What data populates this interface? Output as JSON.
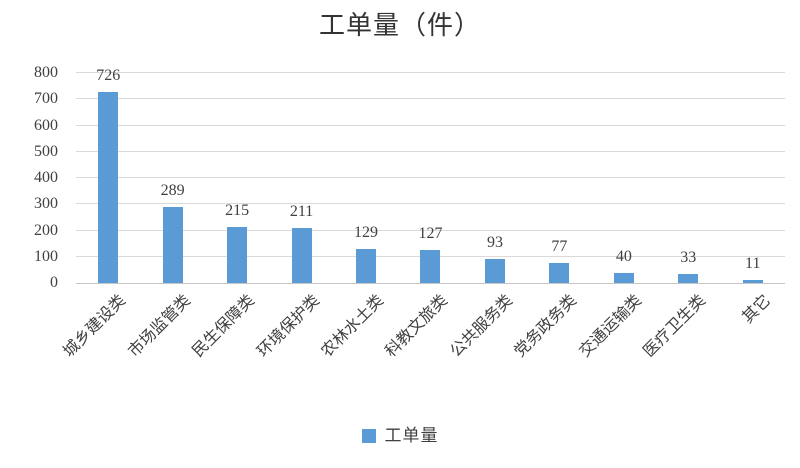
{
  "chart_data": {
    "type": "bar",
    "title": "工单量（件）",
    "categories": [
      "城乡建设类",
      "市场监管类",
      "民生保障类",
      "环境保护类",
      "农林水土类",
      "科教文旅类",
      "公共服务类",
      "党务政务类",
      "交通运输类",
      "医疗卫生类",
      "其它"
    ],
    "values": [
      726,
      289,
      215,
      211,
      129,
      127,
      93,
      77,
      40,
      33,
      11
    ],
    "series": [
      {
        "name": "工单量",
        "values": [
          726,
          289,
          215,
          211,
          129,
          127,
          93,
          77,
          40,
          33,
          11
        ]
      }
    ],
    "xlabel": "",
    "ylabel": "",
    "ylim": [
      0,
      800
    ],
    "yticks": [
      0,
      100,
      200,
      300,
      400,
      500,
      600,
      700,
      800
    ],
    "grid": true,
    "data_labels": true,
    "legend_position": "bottom",
    "legend": {
      "label": "工单量",
      "color": "#5b9bd5"
    },
    "colors": {
      "bar": "#5b9bd5",
      "gridline": "#d9d9d9",
      "axis_line": "#c6c6c6",
      "text": "#404040",
      "title": "#333333",
      "background": "#ffffff"
    }
  }
}
